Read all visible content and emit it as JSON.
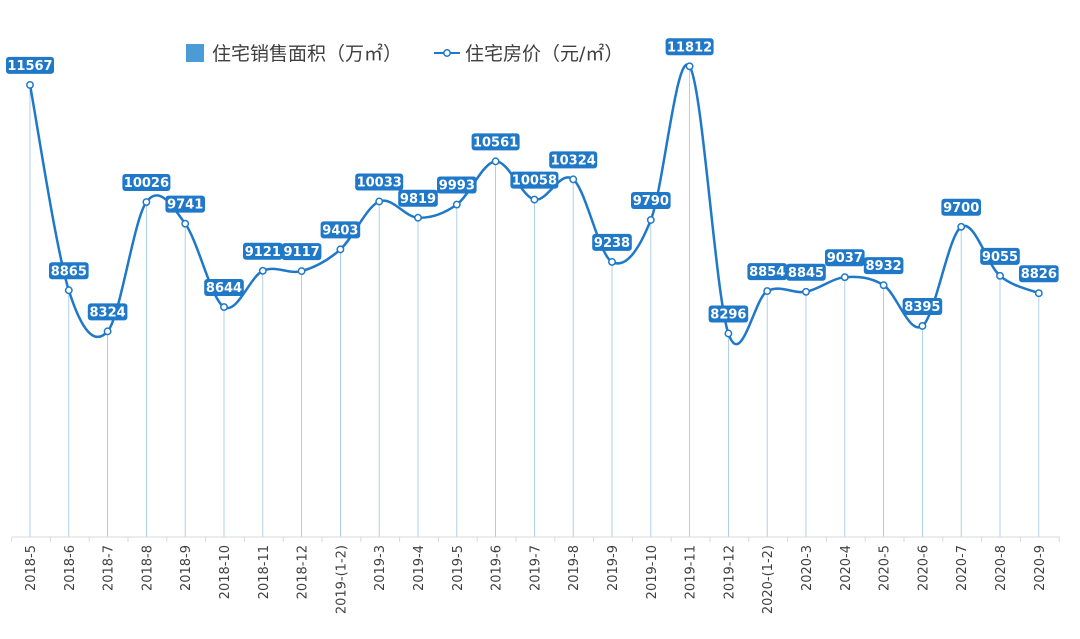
{
  "chart_data": {
    "type": "bar+line",
    "categories": [
      "2018-5",
      "2018-6",
      "2018-7",
      "2018-8",
      "2018-9",
      "2018-10",
      "2018-11",
      "2018-12",
      "2019-(1-2)",
      "2019-3",
      "2019-4",
      "2019-5",
      "2019-6",
      "2019-7",
      "2019-8",
      "2019-9",
      "2019-10",
      "2019-11",
      "2019-12",
      "2020-(1-2)",
      "2020-3",
      "2020-4",
      "2020-5",
      "2020-6",
      "2020-7",
      "2020-8",
      "2020-9"
    ],
    "series": [
      {
        "name": "住宅销售面积（万㎡）",
        "type": "bar",
        "color": "#4a9bd6",
        "values": null,
        "note": "no axis or value labels are shown for this series"
      },
      {
        "name": "住宅房价（元/㎡）",
        "type": "line",
        "color": "#1f78c8",
        "values": [
          11567,
          8865,
          8324,
          10026,
          9741,
          8644,
          9121,
          9117,
          9403,
          10033,
          9819,
          9993,
          10561,
          10058,
          10324,
          9238,
          9790,
          11812,
          8296,
          8854,
          8845,
          9037,
          8932,
          8395,
          9700,
          9055,
          8826
        ]
      }
    ],
    "legend_position": "top-center",
    "grid": false
  }
}
